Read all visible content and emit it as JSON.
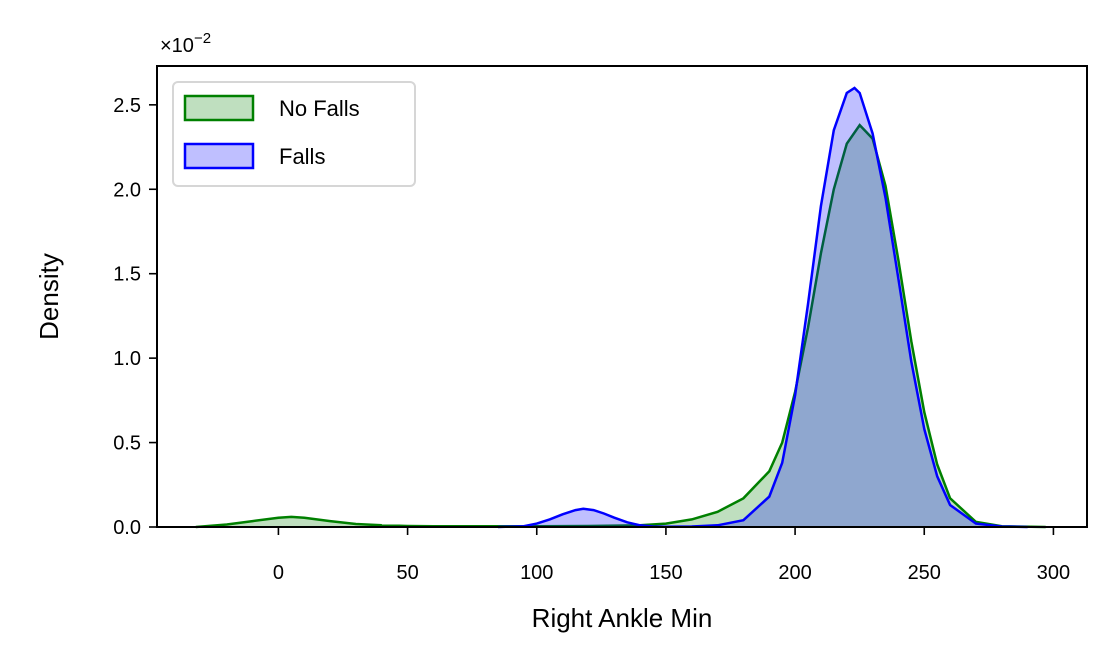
{
  "chart_data": {
    "type": "area",
    "title": "",
    "xlabel": "Right Ankle Min",
    "ylabel": "Density",
    "y_multiplier_label": "×10",
    "y_multiplier_exponent": "−2",
    "xlim": [
      -47,
      313
    ],
    "ylim": [
      0,
      2.73
    ],
    "x_ticks": [
      0,
      50,
      100,
      150,
      200,
      250,
      300
    ],
    "x_tick_labels": [
      "0",
      "50",
      "100",
      "150",
      "200",
      "250",
      "300"
    ],
    "y_ticks": [
      0,
      0.5,
      1.0,
      1.5,
      2.0,
      2.5
    ],
    "y_tick_labels": [
      "0.0",
      "0.5",
      "1.0",
      "1.5",
      "2.0",
      "2.5"
    ],
    "grid": false,
    "legend_position": "upper-left",
    "series": [
      {
        "name": "No Falls",
        "color": "#008000",
        "fill": "#008000",
        "fill_opacity": 0.25,
        "x": [
          -32,
          -20,
          -10,
          0,
          5,
          10,
          20,
          30,
          40,
          50,
          60,
          80,
          100,
          120,
          140,
          150,
          160,
          170,
          180,
          190,
          195,
          200,
          205,
          210,
          215,
          220,
          225,
          230,
          235,
          240,
          245,
          250,
          255,
          260,
          270,
          280,
          297
        ],
        "y": [
          0,
          0.015,
          0.035,
          0.055,
          0.06,
          0.055,
          0.035,
          0.018,
          0.01,
          0.006,
          0.005,
          0.004,
          0.004,
          0.006,
          0.01,
          0.02,
          0.045,
          0.09,
          0.17,
          0.33,
          0.5,
          0.8,
          1.18,
          1.62,
          2.0,
          2.27,
          2.38,
          2.3,
          2.02,
          1.58,
          1.1,
          0.68,
          0.37,
          0.17,
          0.03,
          0.005,
          0
        ]
      },
      {
        "name": "Falls",
        "color": "#0000ff",
        "fill": "#0000ff",
        "fill_opacity": 0.25,
        "x": [
          85,
          95,
          100,
          105,
          110,
          115,
          118,
          122,
          126,
          130,
          135,
          140,
          145,
          150,
          160,
          170,
          180,
          190,
          195,
          200,
          205,
          210,
          215,
          220,
          223,
          225,
          230,
          235,
          240,
          245,
          250,
          255,
          260,
          270,
          280,
          290
        ],
        "y": [
          0,
          0.005,
          0.02,
          0.045,
          0.075,
          0.1,
          0.108,
          0.1,
          0.08,
          0.055,
          0.028,
          0.01,
          0.003,
          0.001,
          0.003,
          0.01,
          0.04,
          0.18,
          0.38,
          0.78,
          1.32,
          1.9,
          2.35,
          2.57,
          2.6,
          2.57,
          2.33,
          1.95,
          1.47,
          0.98,
          0.58,
          0.3,
          0.13,
          0.02,
          0.003,
          0
        ]
      }
    ]
  }
}
